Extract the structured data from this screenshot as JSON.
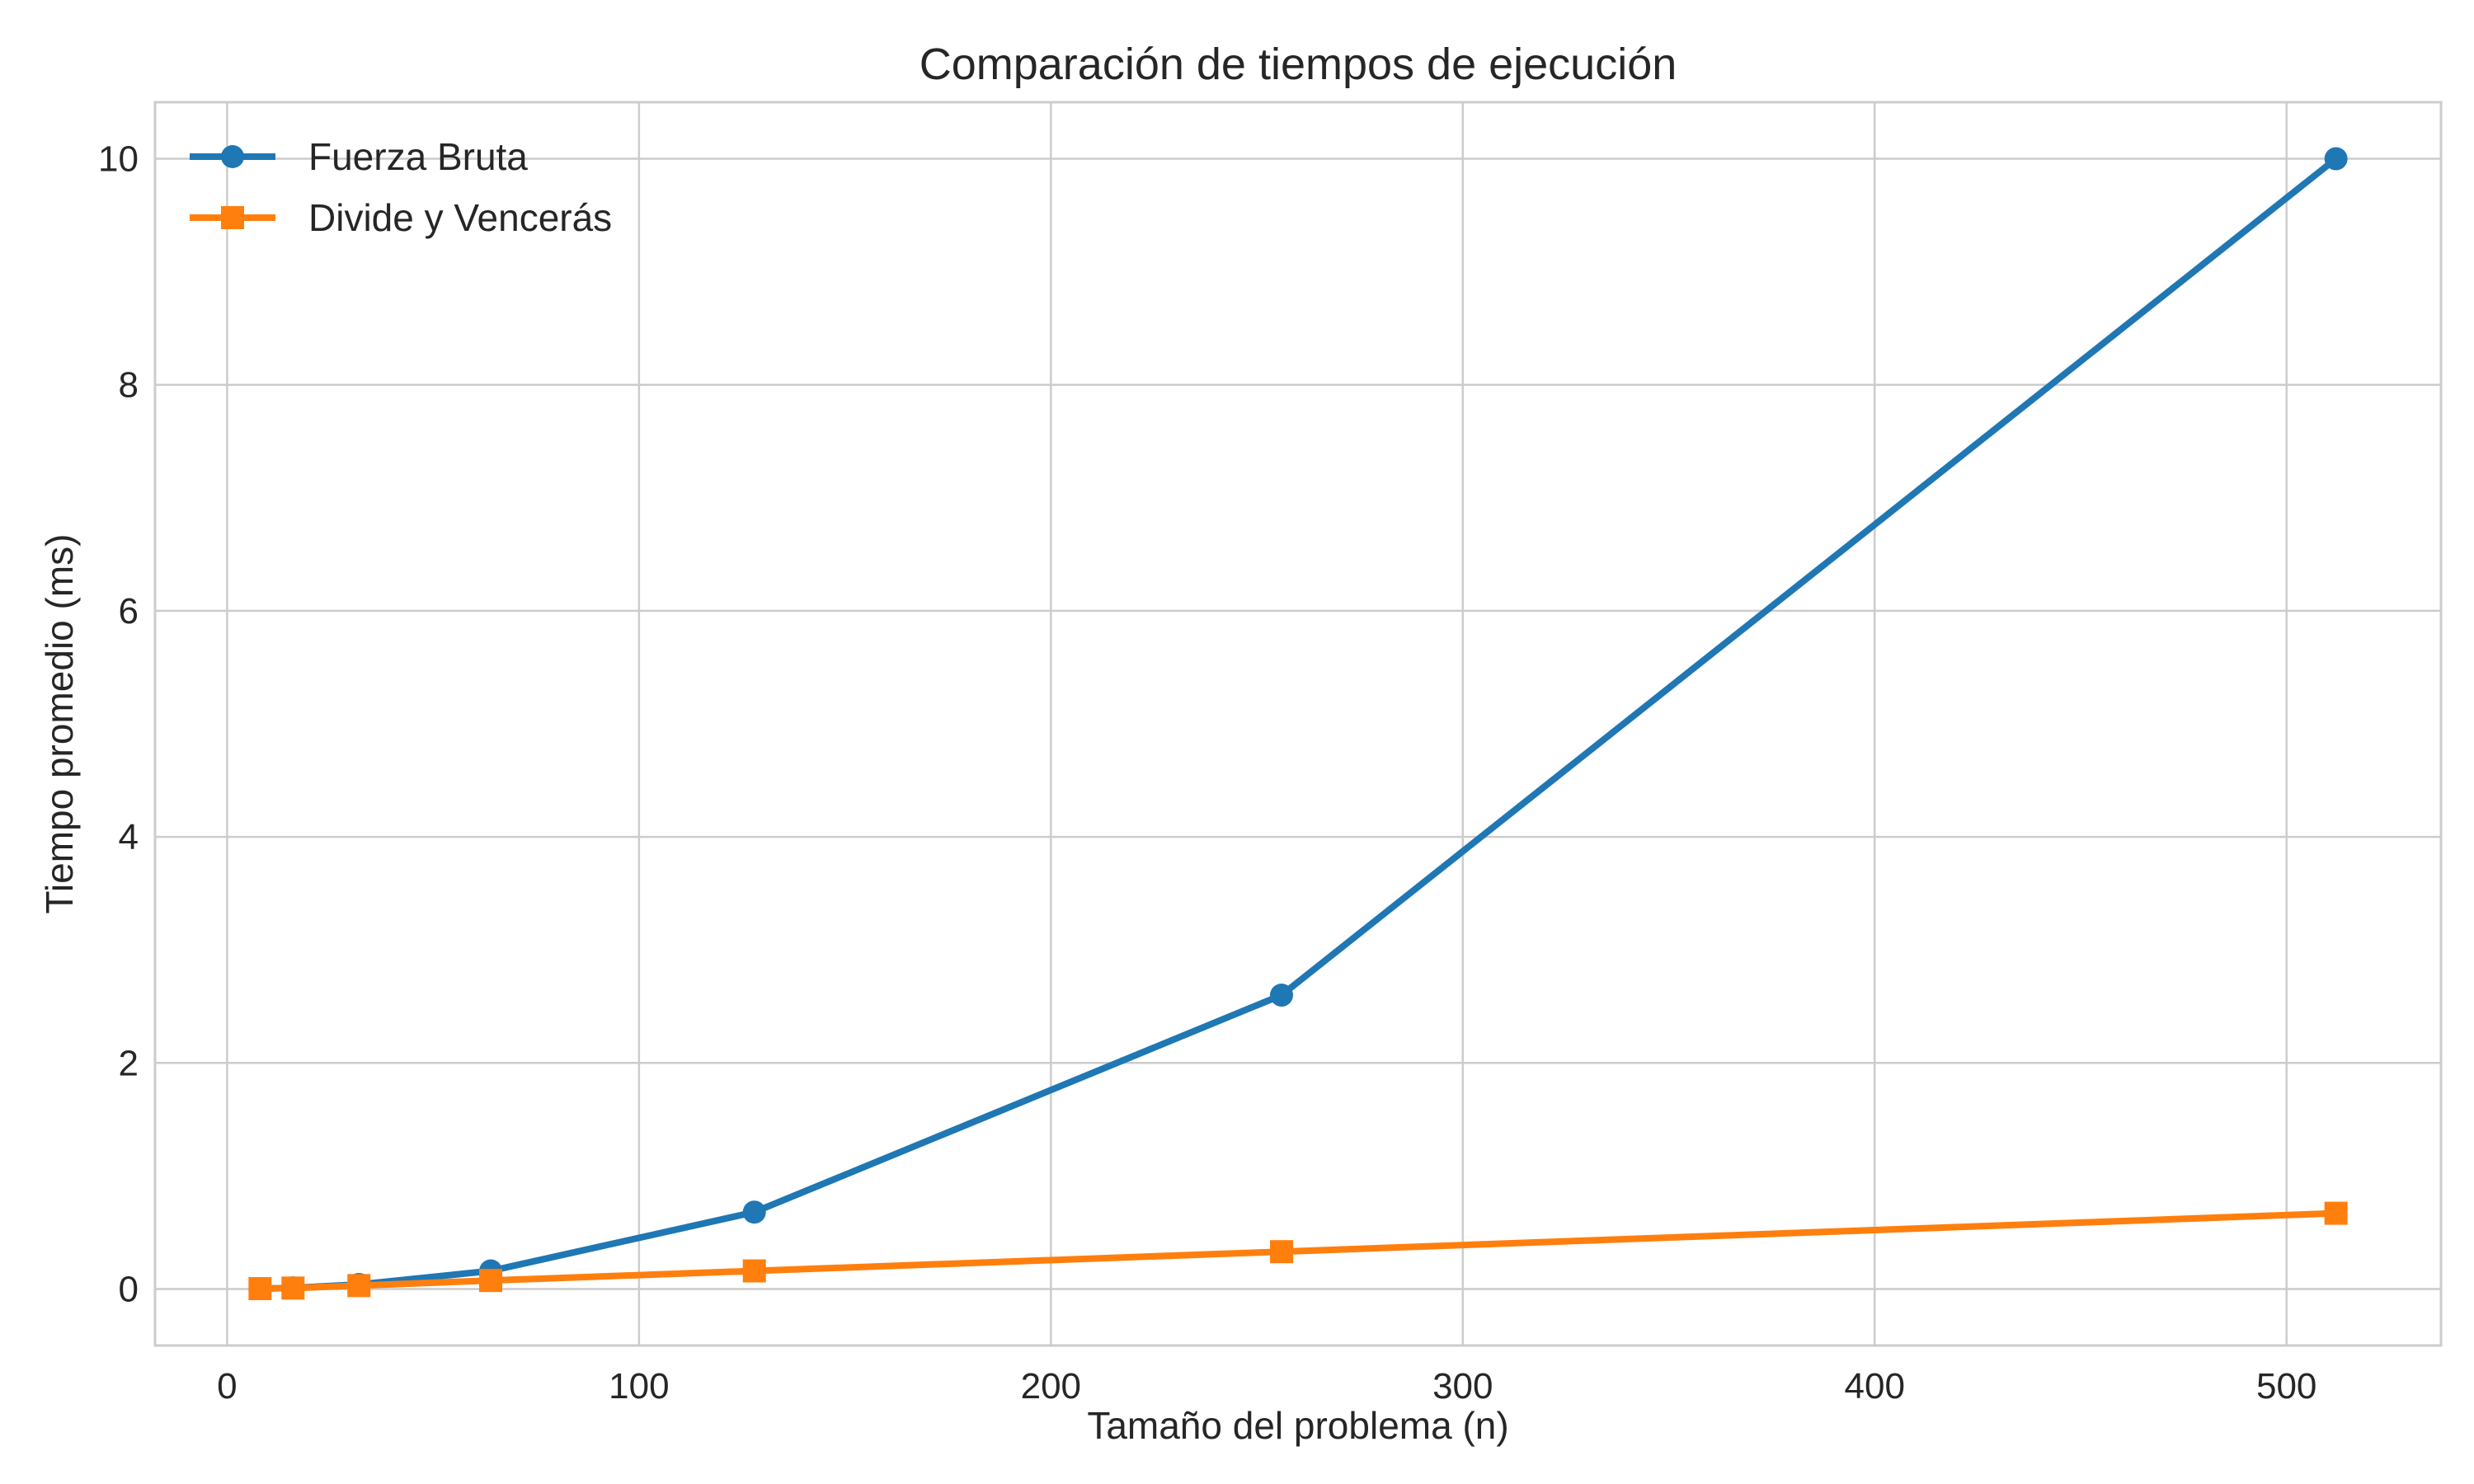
{
  "chart_data": {
    "type": "line",
    "title": "Comparación de tiempos de ejecución",
    "xlabel": "Tamaño del problema (n)",
    "ylabel": "Tiempo promedio (ms)",
    "xlim": [
      -17.5,
      537.5
    ],
    "ylim": [
      -0.5,
      10.5
    ],
    "xticks": [
      0,
      100,
      200,
      300,
      400,
      500
    ],
    "yticks": [
      0,
      2,
      4,
      6,
      8,
      10
    ],
    "grid": true,
    "legend_position": "top-left",
    "series": [
      {
        "name": "Fuerza Bruta",
        "color": "#1f77b4",
        "marker": "circle",
        "x": [
          8,
          16,
          32,
          64,
          128,
          256,
          512
        ],
        "y": [
          0.003,
          0.01,
          0.04,
          0.16,
          0.68,
          2.6,
          10.0
        ]
      },
      {
        "name": "Divide y Vencerás",
        "color": "#ff7f0e",
        "marker": "square",
        "x": [
          8,
          16,
          32,
          64,
          128,
          256,
          512
        ],
        "y": [
          0.003,
          0.008,
          0.03,
          0.075,
          0.16,
          0.33,
          0.67
        ]
      }
    ]
  }
}
